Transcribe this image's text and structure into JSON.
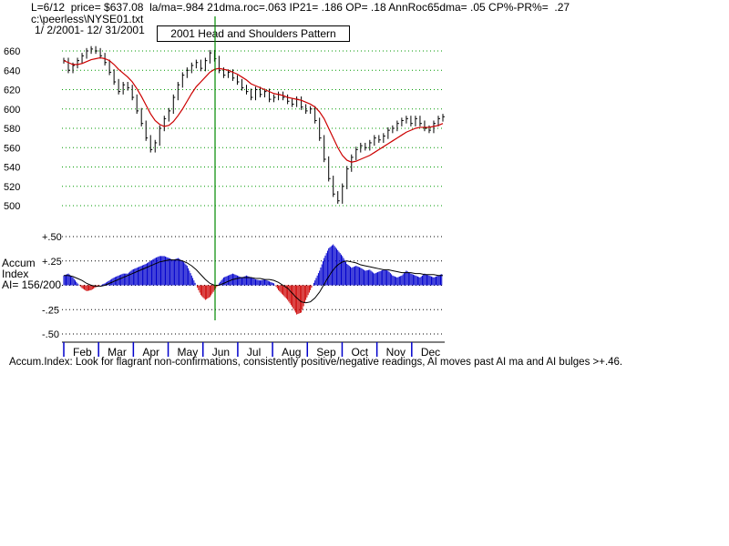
{
  "header": {
    "line1": "L=6/12  price= $637.08  la/ma=.984 21dma.roc=.063 IP21= .186 OP= .18 AnnRoc65dma= .05 CP%-PR%=  .27",
    "file": "c:\\peerless\\NYSE01.txt",
    "range": "1/ 2/2001- 12/ 31/2001"
  },
  "chart_title": "2001 Head and Shoulders Pattern",
  "ai_labels": {
    "line1": "Accum",
    "line2": "Index",
    "line3": "AI= 156/200"
  },
  "footer": "Accum.Index: Look for flagrant non-confirmations, consistently positive/negative readings, AI moves past AI ma and AI bulges >+.46.",
  "colors": {
    "price": "#000000",
    "ma": "#cc0000",
    "pos": "#0000cc",
    "neg": "#cc0000",
    "grid": "#009900",
    "marker": "#008800"
  },
  "chart_data": [
    {
      "type": "line",
      "name_hint": "price",
      "y_ticks": [
        "660",
        "640",
        "620",
        "600",
        "580",
        "560",
        "540",
        "520",
        "500"
      ],
      "ylim": [
        500,
        660
      ],
      "months": [
        "Feb",
        "Mar",
        "Apr",
        "May",
        "Jun",
        "Jul",
        "Aug",
        "Sep",
        "Oct",
        "Nov",
        "Dec"
      ],
      "series": [
        {
          "key": "price",
          "values": [
            650,
            640,
            645,
            650,
            655,
            660,
            662,
            660,
            655,
            648,
            638,
            628,
            618,
            625,
            622,
            612,
            598,
            585,
            570,
            558,
            565,
            580,
            590,
            598,
            612,
            625,
            635,
            640,
            645,
            648,
            642,
            650,
            658,
            652,
            640,
            635,
            638,
            632,
            628,
            622,
            618,
            612,
            620,
            615,
            618,
            610,
            612,
            615,
            612,
            608,
            605,
            610,
            602,
            598,
            600,
            588,
            570,
            548,
            528,
            512,
            505,
            520,
            538,
            550,
            558,
            562,
            560,
            565,
            570,
            568,
            572,
            578,
            580,
            585,
            588,
            590,
            585,
            590,
            585,
            580,
            578,
            585,
            590,
            592
          ]
        },
        {
          "key": "ma",
          "values": [
            650,
            648,
            646,
            646,
            647,
            649,
            651,
            652,
            653,
            652,
            650,
            646,
            641,
            637,
            633,
            628,
            621,
            613,
            604,
            595,
            588,
            584,
            582,
            583,
            587,
            593,
            600,
            608,
            616,
            623,
            628,
            633,
            638,
            641,
            642,
            641,
            640,
            638,
            636,
            633,
            630,
            626,
            624,
            622,
            620,
            618,
            616,
            615,
            614,
            612,
            611,
            610,
            609,
            607,
            605,
            602,
            597,
            590,
            580,
            570,
            560,
            552,
            547,
            545,
            546,
            548,
            550,
            552,
            555,
            558,
            561,
            564,
            567,
            570,
            573,
            576,
            578,
            580,
            581,
            581,
            581,
            582,
            583,
            585
          ]
        }
      ]
    },
    {
      "type": "bar",
      "name_hint": "accumulation index",
      "y_ticks": [
        "+.50",
        "+.25",
        "0",
        "-.25",
        "-.50"
      ],
      "ylim": [
        -0.5,
        0.5
      ],
      "series": [
        {
          "key": "ai",
          "values": [
            0.1,
            0.12,
            0.08,
            0.02,
            -0.03,
            -0.06,
            -0.05,
            -0.02,
            0.0,
            0.02,
            0.05,
            0.08,
            0.1,
            0.12,
            0.12,
            0.16,
            0.18,
            0.2,
            0.22,
            0.25,
            0.28,
            0.3,
            0.3,
            0.28,
            0.26,
            0.28,
            0.25,
            0.2,
            0.1,
            0.0,
            -0.1,
            -0.15,
            -0.12,
            -0.05,
            0.02,
            0.08,
            0.1,
            0.12,
            0.1,
            0.08,
            0.1,
            0.08,
            0.06,
            0.05,
            0.06,
            0.04,
            0.02,
            -0.05,
            -0.1,
            -0.15,
            -0.22,
            -0.3,
            -0.28,
            -0.15,
            -0.05,
            0.05,
            0.15,
            0.28,
            0.38,
            0.42,
            0.36,
            0.3,
            0.22,
            0.18,
            0.2,
            0.18,
            0.15,
            0.16,
            0.12,
            0.14,
            0.16,
            0.15,
            0.1,
            0.08,
            0.1,
            0.15,
            0.12,
            0.1,
            0.08,
            0.12,
            0.1,
            0.08,
            0.1,
            0.12
          ]
        },
        {
          "key": "ai_ma",
          "values": [
            0.1,
            0.1,
            0.09,
            0.07,
            0.05,
            0.02,
            0.0,
            -0.01,
            -0.01,
            0.0,
            0.02,
            0.04,
            0.06,
            0.08,
            0.1,
            0.12,
            0.14,
            0.16,
            0.18,
            0.2,
            0.22,
            0.24,
            0.25,
            0.26,
            0.26,
            0.26,
            0.25,
            0.23,
            0.2,
            0.16,
            0.11,
            0.06,
            0.02,
            0.0,
            0.0,
            0.02,
            0.04,
            0.06,
            0.07,
            0.08,
            0.08,
            0.08,
            0.07,
            0.07,
            0.06,
            0.06,
            0.05,
            0.03,
            0.0,
            -0.03,
            -0.08,
            -0.13,
            -0.17,
            -0.18,
            -0.17,
            -0.13,
            -0.07,
            0.01,
            0.09,
            0.16,
            0.21,
            0.24,
            0.25,
            0.24,
            0.23,
            0.21,
            0.2,
            0.19,
            0.18,
            0.17,
            0.16,
            0.16,
            0.15,
            0.14,
            0.13,
            0.13,
            0.13,
            0.12,
            0.12,
            0.11,
            0.11,
            0.11,
            0.1,
            0.1
          ]
        }
      ]
    }
  ]
}
